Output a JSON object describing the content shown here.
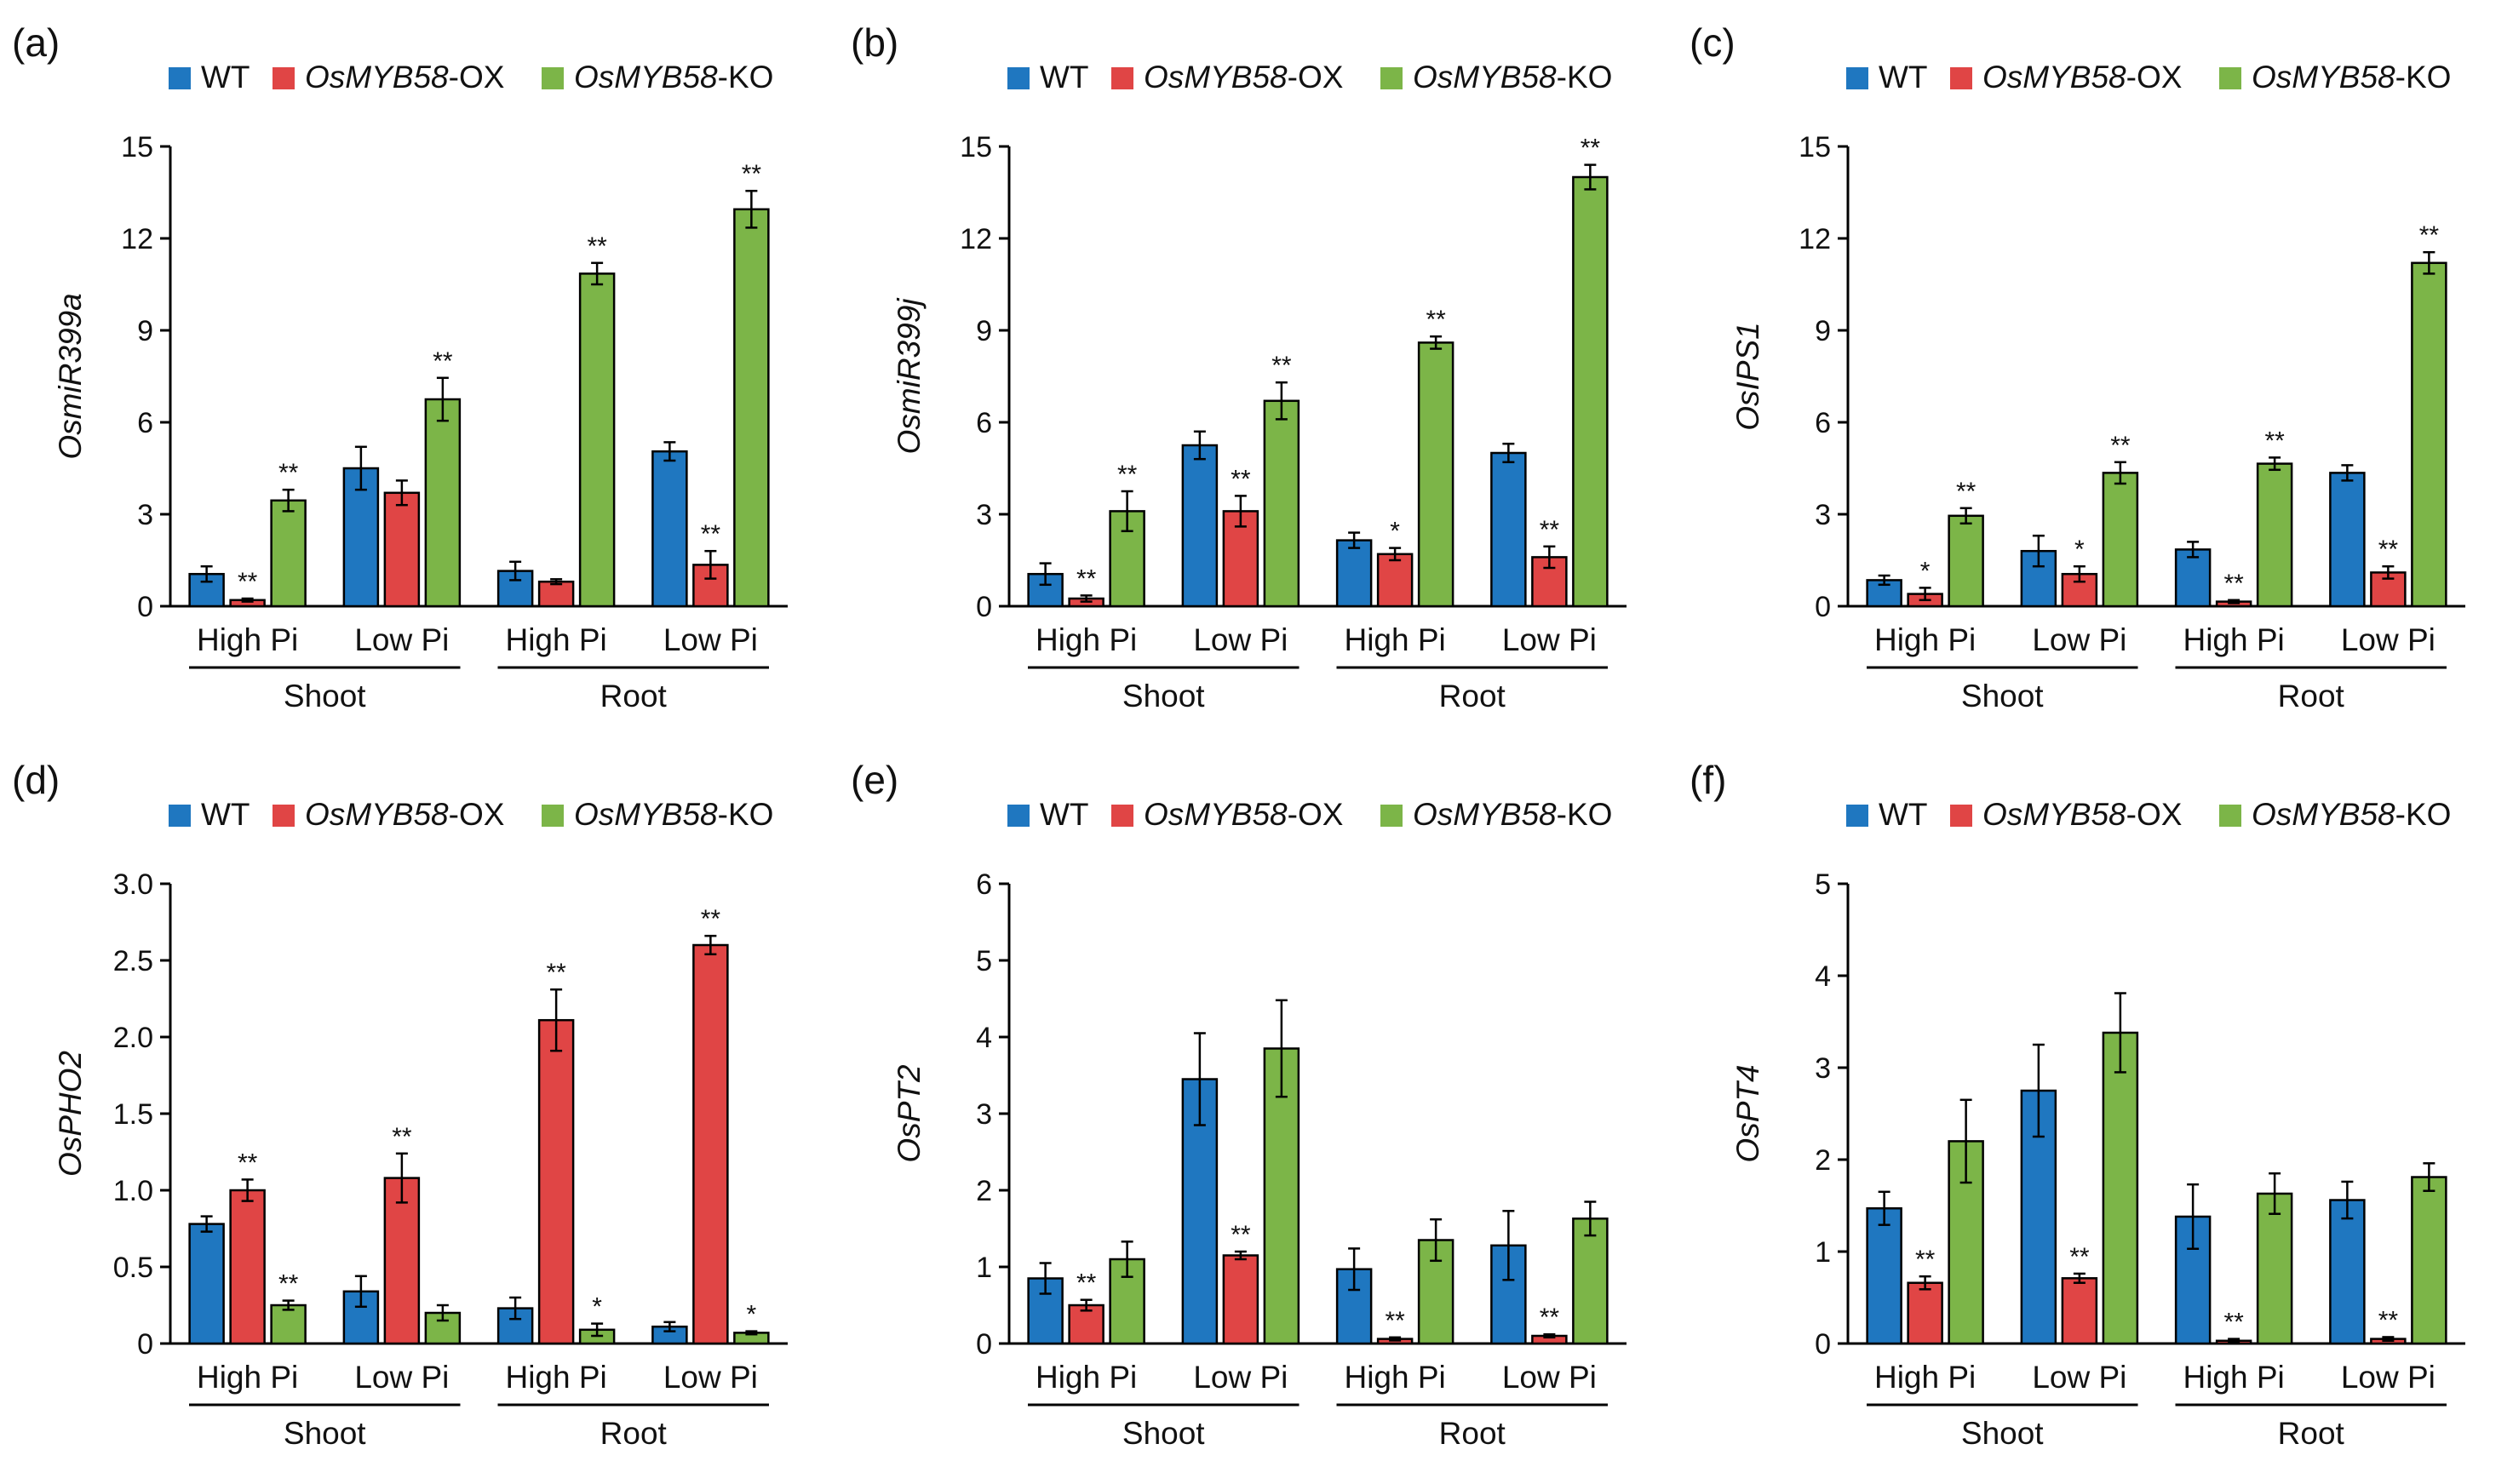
{
  "colors": {
    "WT": "#1f77c0",
    "OX": "#e04545",
    "KO": "#7cb548",
    "axis": "#000000"
  },
  "legend": [
    {
      "gene": "",
      "suffix": "WT",
      "color_key": "WT"
    },
    {
      "gene": "OsMYB58",
      "suffix": "-OX",
      "color_key": "OX"
    },
    {
      "gene": "OsMYB58",
      "suffix": "-KO",
      "color_key": "KO"
    }
  ],
  "groups": [
    "High Pi",
    "Low Pi",
    "High Pi",
    "Low Pi"
  ],
  "tissues": [
    "Shoot",
    "Root"
  ],
  "chart_data": [
    {
      "type": "bar",
      "label": "(a)",
      "ylabel": "OsmiR399a",
      "ylim": [
        0,
        15
      ],
      "yticks": [
        "0",
        "3",
        "6",
        "9",
        "12",
        "15"
      ],
      "categories": [
        "High Pi",
        "Low Pi",
        "High Pi",
        "Low Pi"
      ],
      "series": [
        {
          "name": "WT",
          "values": [
            1.05,
            4.5,
            1.15,
            5.05
          ],
          "errors": [
            0.25,
            0.7,
            0.3,
            0.3
          ],
          "sig": [
            "",
            "",
            "",
            ""
          ]
        },
        {
          "name": "OsMYB58-OX",
          "values": [
            0.2,
            3.7,
            0.8,
            1.35
          ],
          "errors": [
            0.05,
            0.4,
            0.08,
            0.45
          ],
          "sig": [
            "**",
            "",
            "",
            "**"
          ]
        },
        {
          "name": "OsMYB58-KO",
          "values": [
            3.45,
            6.75,
            10.85,
            12.95
          ],
          "errors": [
            0.35,
            0.7,
            0.35,
            0.6
          ],
          "sig": [
            "**",
            "**",
            "**",
            "**"
          ]
        }
      ]
    },
    {
      "type": "bar",
      "label": "(b)",
      "ylabel": "OsmiR399j",
      "ylim": [
        0,
        15
      ],
      "yticks": [
        "0",
        "3",
        "6",
        "9",
        "12",
        "15"
      ],
      "categories": [
        "High Pi",
        "Low Pi",
        "High Pi",
        "Low Pi"
      ],
      "series": [
        {
          "name": "WT",
          "values": [
            1.05,
            5.25,
            2.15,
            5.0
          ],
          "errors": [
            0.35,
            0.45,
            0.25,
            0.3
          ],
          "sig": [
            "",
            "",
            "",
            ""
          ]
        },
        {
          "name": "OsMYB58-OX",
          "values": [
            0.25,
            3.1,
            1.7,
            1.6
          ],
          "errors": [
            0.1,
            0.5,
            0.2,
            0.35
          ],
          "sig": [
            "**",
            "**",
            "*",
            "**"
          ]
        },
        {
          "name": "OsMYB58-KO",
          "values": [
            3.1,
            6.7,
            8.6,
            14.0
          ],
          "errors": [
            0.65,
            0.6,
            0.2,
            0.4
          ],
          "sig": [
            "**",
            "**",
            "**",
            "**"
          ]
        }
      ]
    },
    {
      "type": "bar",
      "label": "(c)",
      "ylabel": "OsIPS1",
      "ylim": [
        0,
        15
      ],
      "yticks": [
        "0",
        "3",
        "6",
        "9",
        "12",
        "15"
      ],
      "categories": [
        "High Pi",
        "Low Pi",
        "High Pi",
        "Low Pi"
      ],
      "series": [
        {
          "name": "WT",
          "values": [
            0.85,
            1.8,
            1.85,
            4.35
          ],
          "errors": [
            0.15,
            0.5,
            0.25,
            0.25
          ],
          "sig": [
            "",
            "",
            "",
            ""
          ]
        },
        {
          "name": "OsMYB58-OX",
          "values": [
            0.4,
            1.05,
            0.15,
            1.1
          ],
          "errors": [
            0.2,
            0.25,
            0.05,
            0.2
          ],
          "sig": [
            "*",
            "*",
            "**",
            "**"
          ]
        },
        {
          "name": "OsMYB58-KO",
          "values": [
            2.95,
            4.35,
            4.65,
            11.2
          ],
          "errors": [
            0.25,
            0.35,
            0.2,
            0.35
          ],
          "sig": [
            "**",
            "**",
            "**",
            "**"
          ]
        }
      ]
    },
    {
      "type": "bar",
      "label": "(d)",
      "ylabel": "OsPHO2",
      "ylim": [
        0,
        3
      ],
      "yticks": [
        "0",
        "0.5",
        "1.0",
        "1.5",
        "2.0",
        "2.5",
        "3.0"
      ],
      "categories": [
        "High Pi",
        "Low Pi",
        "High Pi",
        "Low Pi"
      ],
      "series": [
        {
          "name": "WT",
          "values": [
            0.78,
            0.34,
            0.23,
            0.11
          ],
          "errors": [
            0.05,
            0.1,
            0.07,
            0.03
          ],
          "sig": [
            "",
            "",
            "",
            ""
          ]
        },
        {
          "name": "OsMYB58-OX",
          "values": [
            1.0,
            1.08,
            2.11,
            2.6
          ],
          "errors": [
            0.07,
            0.16,
            0.2,
            0.06
          ],
          "sig": [
            "**",
            "**",
            "**",
            "**"
          ]
        },
        {
          "name": "OsMYB58-KO",
          "values": [
            0.25,
            0.2,
            0.09,
            0.07
          ],
          "errors": [
            0.03,
            0.05,
            0.04,
            0.01
          ],
          "sig": [
            "**",
            "",
            "*",
            "*"
          ]
        }
      ]
    },
    {
      "type": "bar",
      "label": "(e)",
      "ylabel": "OsPT2",
      "ylim": [
        0,
        6
      ],
      "yticks": [
        "0",
        "1",
        "2",
        "3",
        "4",
        "5",
        "6"
      ],
      "categories": [
        "High Pi",
        "Low Pi",
        "High Pi",
        "Low Pi"
      ],
      "series": [
        {
          "name": "WT",
          "values": [
            0.85,
            3.45,
            0.97,
            1.28
          ],
          "errors": [
            0.2,
            0.6,
            0.27,
            0.45
          ],
          "sig": [
            "",
            "",
            "",
            ""
          ]
        },
        {
          "name": "OsMYB58-OX",
          "values": [
            0.5,
            1.15,
            0.06,
            0.1
          ],
          "errors": [
            0.07,
            0.05,
            0.02,
            0.02
          ],
          "sig": [
            "**",
            "**",
            "**",
            "**"
          ]
        },
        {
          "name": "OsMYB58-KO",
          "values": [
            1.1,
            3.85,
            1.35,
            1.63
          ],
          "errors": [
            0.23,
            0.63,
            0.27,
            0.22
          ],
          "sig": [
            "",
            "",
            "",
            ""
          ]
        }
      ]
    },
    {
      "type": "bar",
      "label": "(f)",
      "ylabel": "OsPT4",
      "ylim": [
        0,
        5
      ],
      "yticks": [
        "0",
        "1",
        "2",
        "3",
        "4",
        "5"
      ],
      "categories": [
        "High Pi",
        "Low Pi",
        "High Pi",
        "Low Pi"
      ],
      "series": [
        {
          "name": "WT",
          "values": [
            1.47,
            2.75,
            1.38,
            1.56
          ],
          "errors": [
            0.18,
            0.5,
            0.35,
            0.2
          ],
          "sig": [
            "",
            "",
            "",
            ""
          ]
        },
        {
          "name": "OsMYB58-OX",
          "values": [
            0.66,
            0.71,
            0.03,
            0.05
          ],
          "errors": [
            0.07,
            0.05,
            0.02,
            0.02
          ],
          "sig": [
            "**",
            "**",
            "**",
            "**"
          ]
        },
        {
          "name": "OsMYB58-KO",
          "values": [
            2.2,
            3.38,
            1.63,
            1.81
          ],
          "errors": [
            0.45,
            0.43,
            0.22,
            0.15
          ],
          "sig": [
            "",
            "",
            "",
            ""
          ]
        }
      ]
    }
  ]
}
